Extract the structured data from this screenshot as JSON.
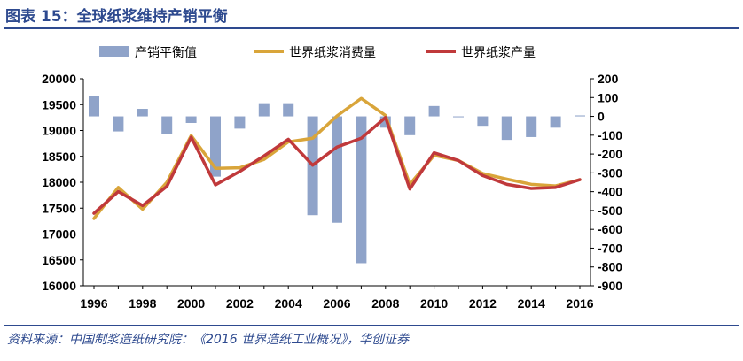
{
  "header": {
    "title": "图表 15：全球纸浆维持产销平衡"
  },
  "footer": {
    "source": "资料来源：中国制浆造纸研究院：《2016 世界造纸工业概况》，华创证券"
  },
  "colors": {
    "balance": "#8fa3c9",
    "consumption": "#d9a53a",
    "production": "#c0393b",
    "title": "#2e4a8f"
  },
  "chart_data": {
    "type": "bar+line",
    "title": "",
    "x": [
      1996,
      1997,
      1998,
      1999,
      2000,
      2001,
      2002,
      2003,
      2004,
      2005,
      2006,
      2007,
      2008,
      2009,
      2010,
      2011,
      2012,
      2013,
      2014,
      2015,
      2016
    ],
    "xticks": [
      "1996",
      "1998",
      "2000",
      "2002",
      "2004",
      "2006",
      "2008",
      "2010",
      "2012",
      "2014",
      "2016"
    ],
    "left_axis": {
      "ylim": [
        16000,
        20000
      ],
      "ticks": [
        "20000",
        "19500",
        "19000",
        "18500",
        "18000",
        "17500",
        "17000",
        "16500",
        "16000"
      ]
    },
    "right_axis": {
      "ylim": [
        -900,
        200
      ],
      "ticks": [
        "200",
        "100",
        "0",
        "-100",
        "-200",
        "-300",
        "-400",
        "-500",
        "-600",
        "-700",
        "-800",
        "-900"
      ]
    },
    "legend": {
      "position": "top",
      "entries": [
        "产销平衡值",
        "世界纸浆消费量",
        "世界纸浆产量"
      ]
    },
    "series": [
      {
        "name": "产销平衡值",
        "type": "bar",
        "axis": "right",
        "values": [
          110,
          -80,
          40,
          -95,
          -35,
          -320,
          -65,
          70,
          70,
          -525,
          -565,
          -780,
          -60,
          -100,
          55,
          0,
          -50,
          -125,
          -110,
          -60,
          5
        ]
      },
      {
        "name": "世界纸浆消费量",
        "type": "line",
        "axis": "left",
        "values": [
          17300,
          17900,
          17480,
          18000,
          18900,
          18270,
          18280,
          18440,
          18780,
          18850,
          19280,
          19620,
          19290,
          17960,
          18520,
          18420,
          18170,
          18060,
          17960,
          17930,
          18050
        ]
      },
      {
        "name": "世界纸浆产量",
        "type": "line",
        "axis": "left",
        "values": [
          17400,
          17820,
          17550,
          17920,
          18870,
          17950,
          18210,
          18510,
          18830,
          18330,
          18680,
          18850,
          19250,
          17870,
          18570,
          18420,
          18130,
          17960,
          17880,
          17900,
          18050
        ]
      }
    ]
  }
}
